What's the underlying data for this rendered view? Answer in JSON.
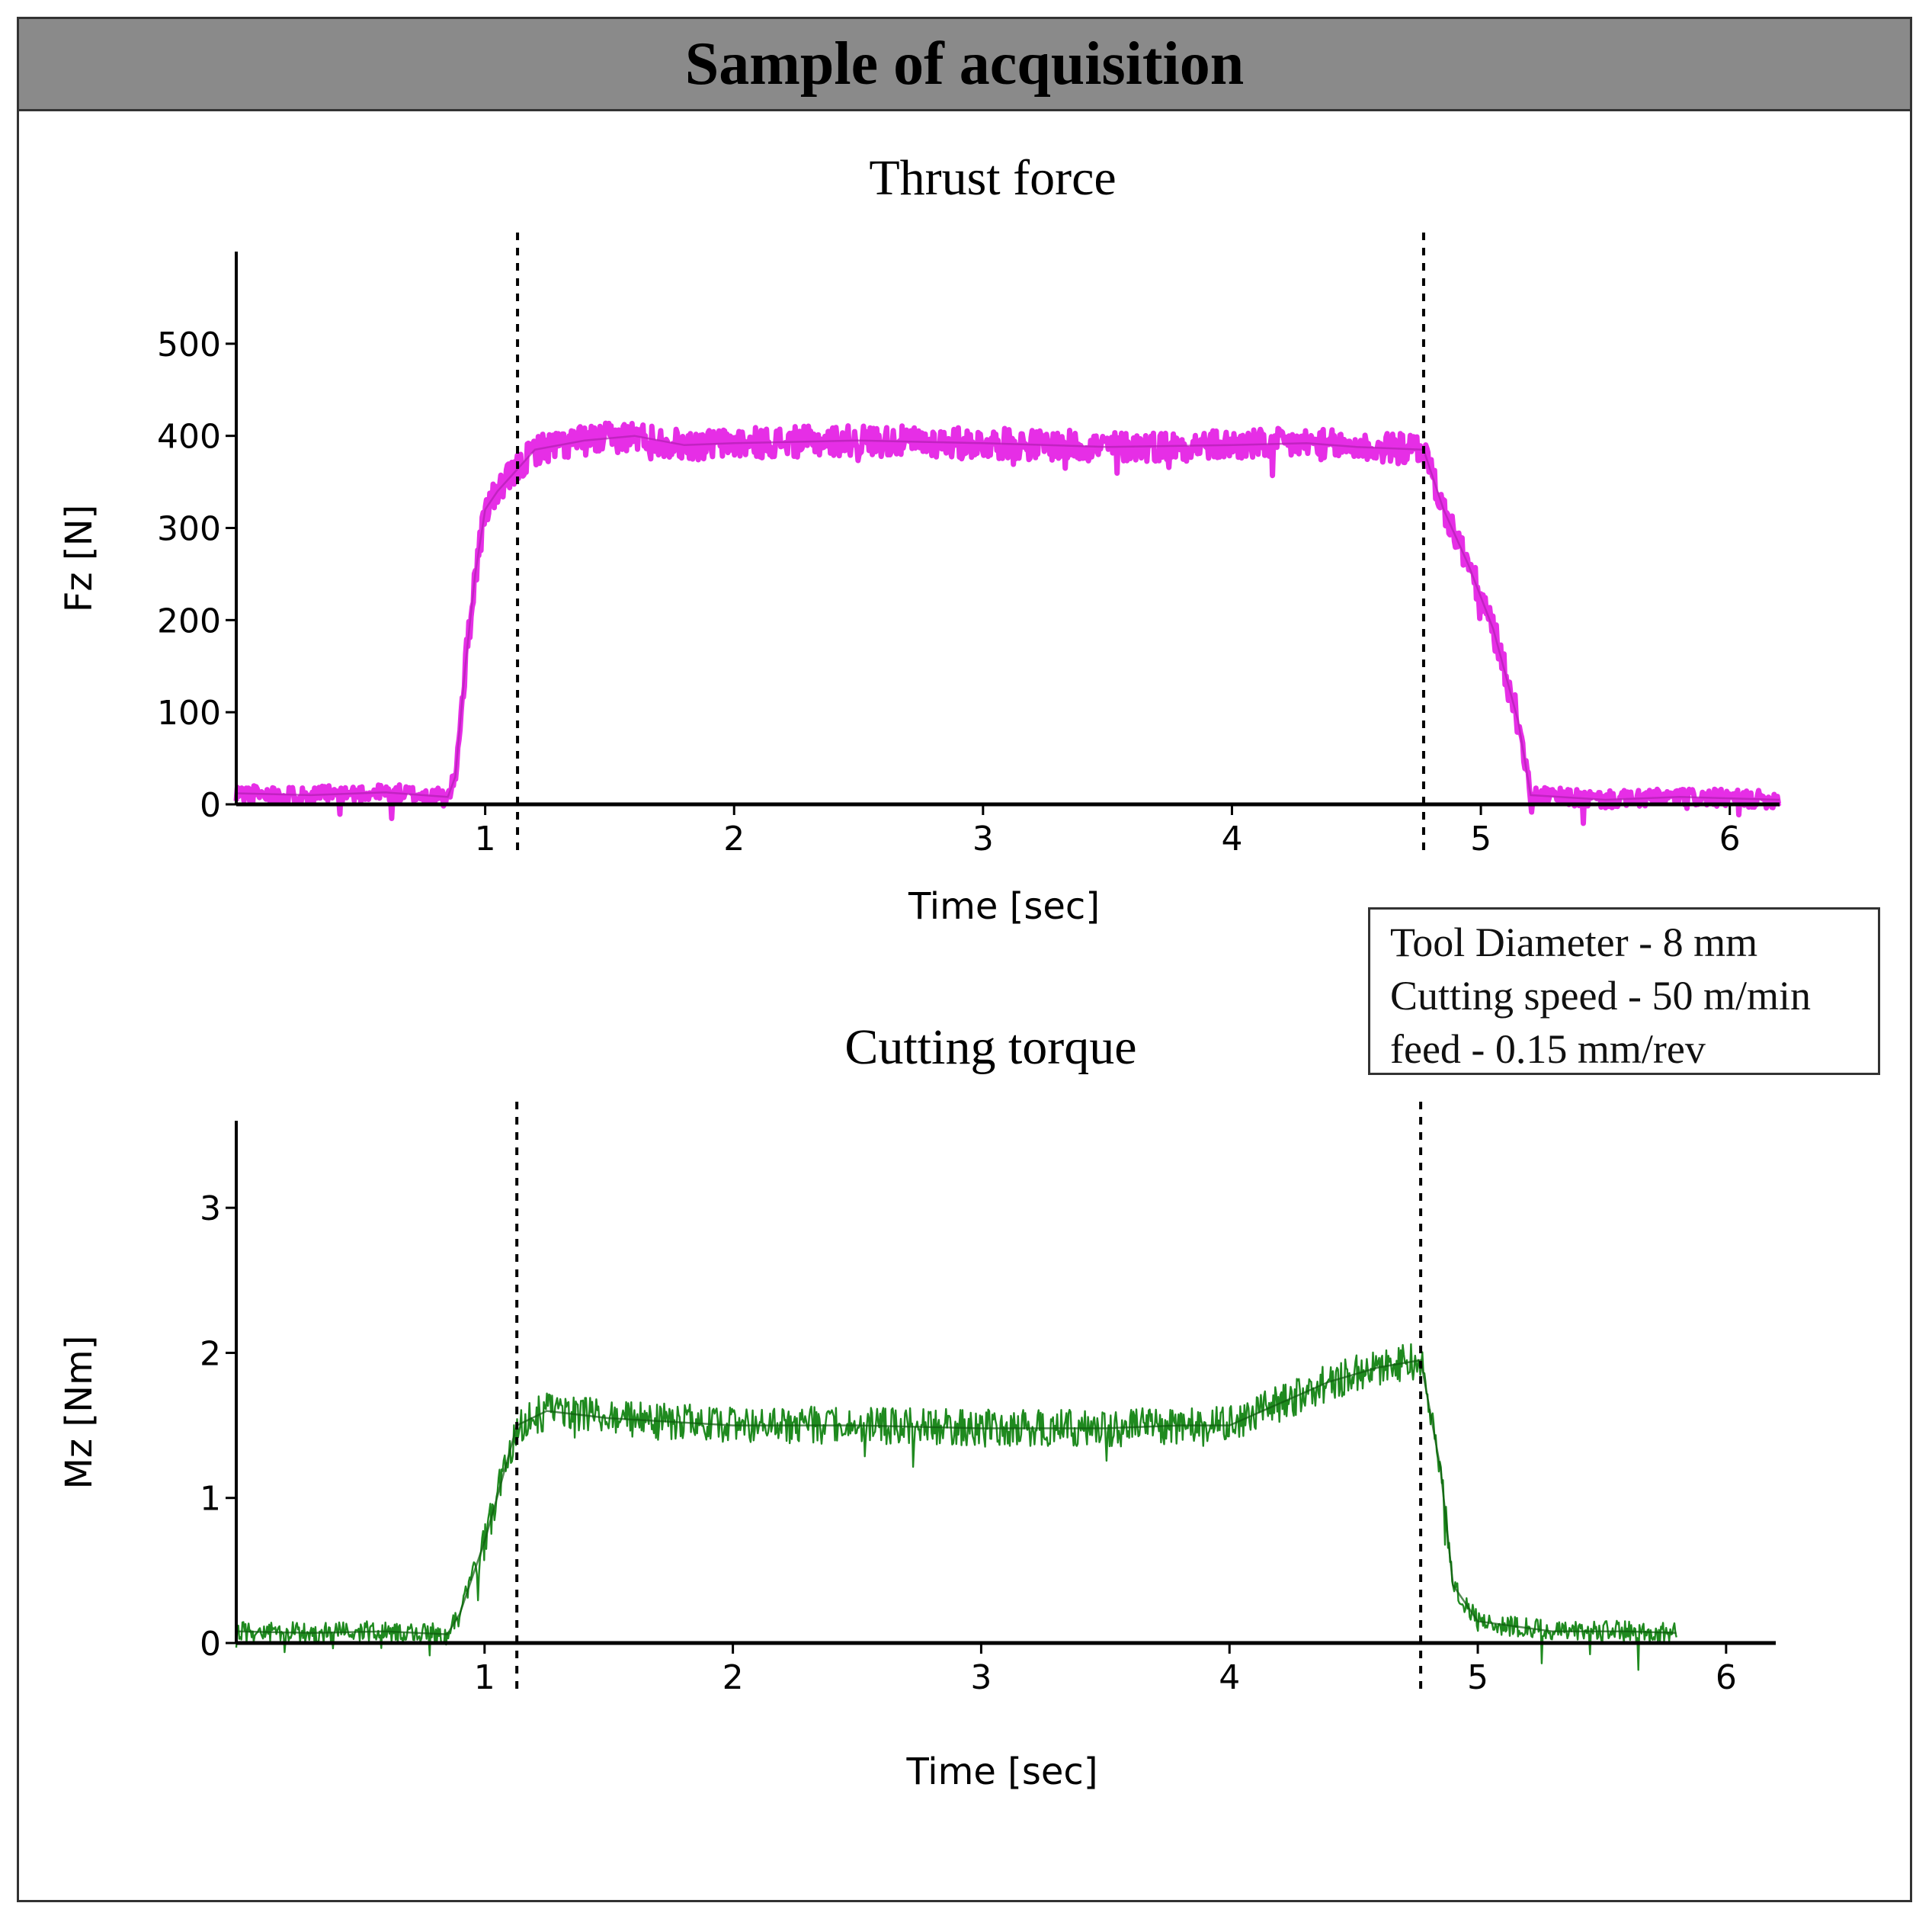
{
  "header": {
    "title": "Sample of acquisition"
  },
  "info_box": {
    "lines": [
      "Tool Diameter - 8 mm",
      "Cutting speed - 50 m/min",
      "feed - 0.15 mm/rev"
    ]
  },
  "colors": {
    "thrust": "#e62ee6",
    "thrust_dark": "#b020b0",
    "torque": "#1f8a1f",
    "torque_dark": "#0d5a0d"
  },
  "chart_data": [
    {
      "type": "line",
      "title": "Thrust force",
      "xlabel": "Time [sec]",
      "ylabel": "Fz [N]",
      "xlim": [
        0,
        6.2
      ],
      "ylim": [
        0,
        600
      ],
      "x_ticks": [
        1,
        2,
        3,
        4,
        5,
        6
      ],
      "y_ticks": [
        0,
        100,
        200,
        300,
        400,
        500
      ],
      "markers_x": [
        1.13,
        4.77
      ],
      "series": [
        {
          "name": "Fz",
          "x": [
            0,
            0.3,
            0.6,
            0.85,
            0.88,
            0.92,
            0.96,
            1.0,
            1.05,
            1.1,
            1.2,
            1.4,
            1.6,
            1.8,
            2.0,
            2.5,
            3.0,
            3.5,
            4.0,
            4.3,
            4.5,
            4.77,
            4.85,
            4.95,
            5.05,
            5.15,
            5.2,
            5.5,
            5.8,
            6.2
          ],
          "values": [
            12,
            10,
            13,
            8,
            30,
            150,
            250,
            320,
            340,
            355,
            385,
            395,
            400,
            390,
            392,
            395,
            392,
            388,
            390,
            392,
            388,
            385,
            320,
            260,
            190,
            90,
            10,
            5,
            8,
            5
          ]
        }
      ]
    },
    {
      "type": "line",
      "title": "Cutting torque",
      "xlabel": "Time [sec]",
      "ylabel": "Mz [Nm]",
      "xlim": [
        0,
        6.2
      ],
      "ylim": [
        0,
        3.6
      ],
      "x_ticks": [
        1,
        2,
        3,
        4,
        5,
        6
      ],
      "y_ticks": [
        0,
        1,
        2,
        3
      ],
      "markers_x": [
        1.13,
        4.77
      ],
      "series": [
        {
          "name": "Mz",
          "x": [
            0,
            0.3,
            0.6,
            0.85,
            0.9,
            1.0,
            1.05,
            1.13,
            1.25,
            1.5,
            2.0,
            2.5,
            3.0,
            3.5,
            3.8,
            4.0,
            4.2,
            4.4,
            4.6,
            4.77,
            4.85,
            4.9,
            5.0,
            5.3,
            5.6,
            5.8
          ],
          "values": [
            0.08,
            0.07,
            0.08,
            0.06,
            0.2,
            0.7,
            1.0,
            1.5,
            1.6,
            1.55,
            1.5,
            1.5,
            1.48,
            1.48,
            1.5,
            1.5,
            1.65,
            1.8,
            1.9,
            1.95,
            1.2,
            0.4,
            0.15,
            0.08,
            0.08,
            0.07
          ]
        }
      ]
    }
  ]
}
